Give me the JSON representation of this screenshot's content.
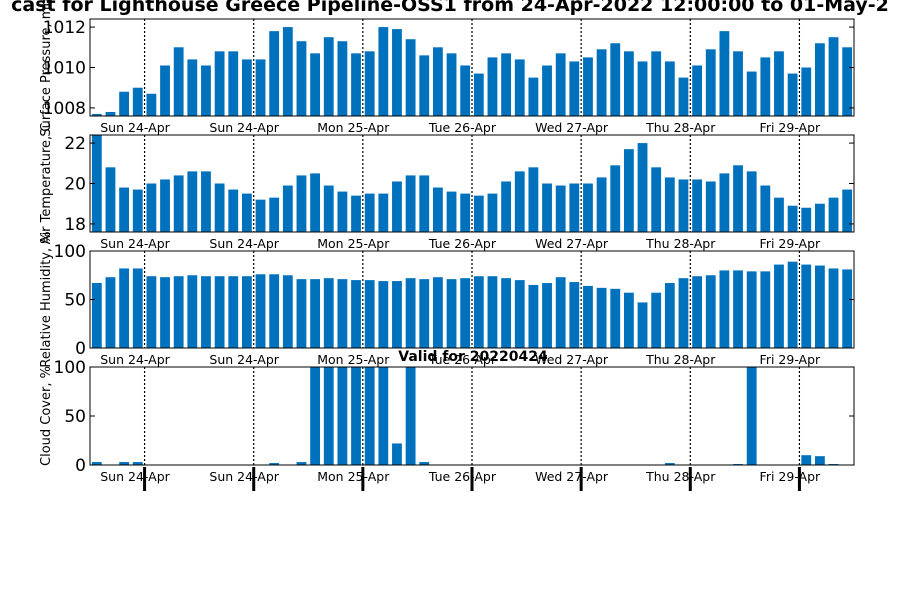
{
  "title": "cast for Lighthouse Greece Pipeline-OSS1 from 24-Apr-2022 12:00:00 to 01-May-2",
  "footer": "Valid for 20220424",
  "colors": {
    "bar": "#0072bd",
    "axis": "#000000",
    "background": "#ffffff"
  },
  "day_labels": [
    "Sun 24-Apr",
    "Sun 24-Apr",
    "Mon 25-Apr",
    "Tue 26-Apr",
    "Wed 27-Apr",
    "Thu 28-Apr",
    "Fri 29-Apr"
  ],
  "chart_data": [
    {
      "type": "bar",
      "ylabel": "Surface Pressure, mb",
      "ylim": [
        1007.6,
        1012.4
      ],
      "yticks": [
        1008,
        1010,
        1012
      ],
      "values": [
        1007.7,
        1007.8,
        1008.8,
        1009.0,
        1008.7,
        1010.1,
        1011.0,
        1010.4,
        1010.1,
        1010.8,
        1010.8,
        1010.4,
        1010.4,
        1011.8,
        1012.0,
        1011.3,
        1010.7,
        1011.5,
        1011.3,
        1010.7,
        1010.8,
        1012.0,
        1011.9,
        1011.4,
        1010.6,
        1011.0,
        1010.7,
        1010.1,
        1009.7,
        1010.5,
        1010.7,
        1010.4,
        1009.5,
        1010.1,
        1010.7,
        1010.3,
        1010.5,
        1010.9,
        1011.2,
        1010.8,
        1010.3,
        1010.8,
        1010.3,
        1009.5,
        1010.1,
        1010.9,
        1011.8,
        1010.8,
        1009.8,
        1010.5,
        1010.8,
        1009.7,
        1010.0,
        1011.2,
        1011.5,
        1011.0
      ]
    },
    {
      "type": "bar",
      "ylabel": "Air Temperature, C",
      "ylim": [
        17.6,
        22.4
      ],
      "yticks": [
        18,
        20,
        22
      ],
      "values": [
        22.5,
        20.8,
        19.8,
        19.7,
        20.0,
        20.2,
        20.4,
        20.6,
        20.6,
        20.0,
        19.7,
        19.5,
        19.2,
        19.3,
        19.9,
        20.4,
        20.5,
        19.9,
        19.6,
        19.4,
        19.5,
        19.5,
        20.1,
        20.4,
        20.4,
        19.8,
        19.6,
        19.5,
        19.4,
        19.5,
        20.1,
        20.6,
        20.8,
        20.0,
        19.9,
        20.0,
        20.0,
        20.3,
        20.9,
        21.7,
        22.0,
        20.8,
        20.3,
        20.2,
        20.2,
        20.1,
        20.5,
        20.9,
        20.6,
        19.9,
        19.3,
        18.9,
        18.8,
        19.0,
        19.3,
        19.7
      ]
    },
    {
      "type": "bar",
      "ylabel": "Relative Humidity, %",
      "ylim": [
        0,
        100
      ],
      "yticks": [
        0,
        50,
        100
      ],
      "values": [
        67,
        73,
        82,
        82,
        74,
        73,
        74,
        75,
        74,
        74,
        74,
        74,
        76,
        76,
        75,
        71,
        71,
        72,
        71,
        70,
        70,
        69,
        69,
        72,
        71,
        73,
        71,
        72,
        74,
        74,
        72,
        70,
        65,
        67,
        73,
        68,
        64,
        62,
        61,
        57,
        47,
        57,
        67,
        72,
        74,
        75,
        80,
        80,
        79,
        79,
        86,
        89,
        86,
        85,
        82,
        81
      ]
    },
    {
      "type": "bar",
      "ylabel": "Cloud Cover, %",
      "ylim": [
        0,
        100
      ],
      "yticks": [
        0,
        50,
        100
      ],
      "values": [
        3,
        0,
        3,
        3,
        0,
        0,
        0,
        0,
        0,
        0,
        0,
        0,
        0,
        2,
        0,
        3,
        100,
        100,
        100,
        100,
        100,
        100,
        22,
        100,
        3,
        0,
        0,
        0,
        0,
        0,
        0,
        0,
        0,
        0,
        0,
        0,
        0,
        0,
        0,
        0,
        0,
        0,
        2,
        0,
        0,
        0,
        0,
        1,
        100,
        0,
        0,
        0,
        10,
        9,
        1,
        0
      ]
    }
  ]
}
